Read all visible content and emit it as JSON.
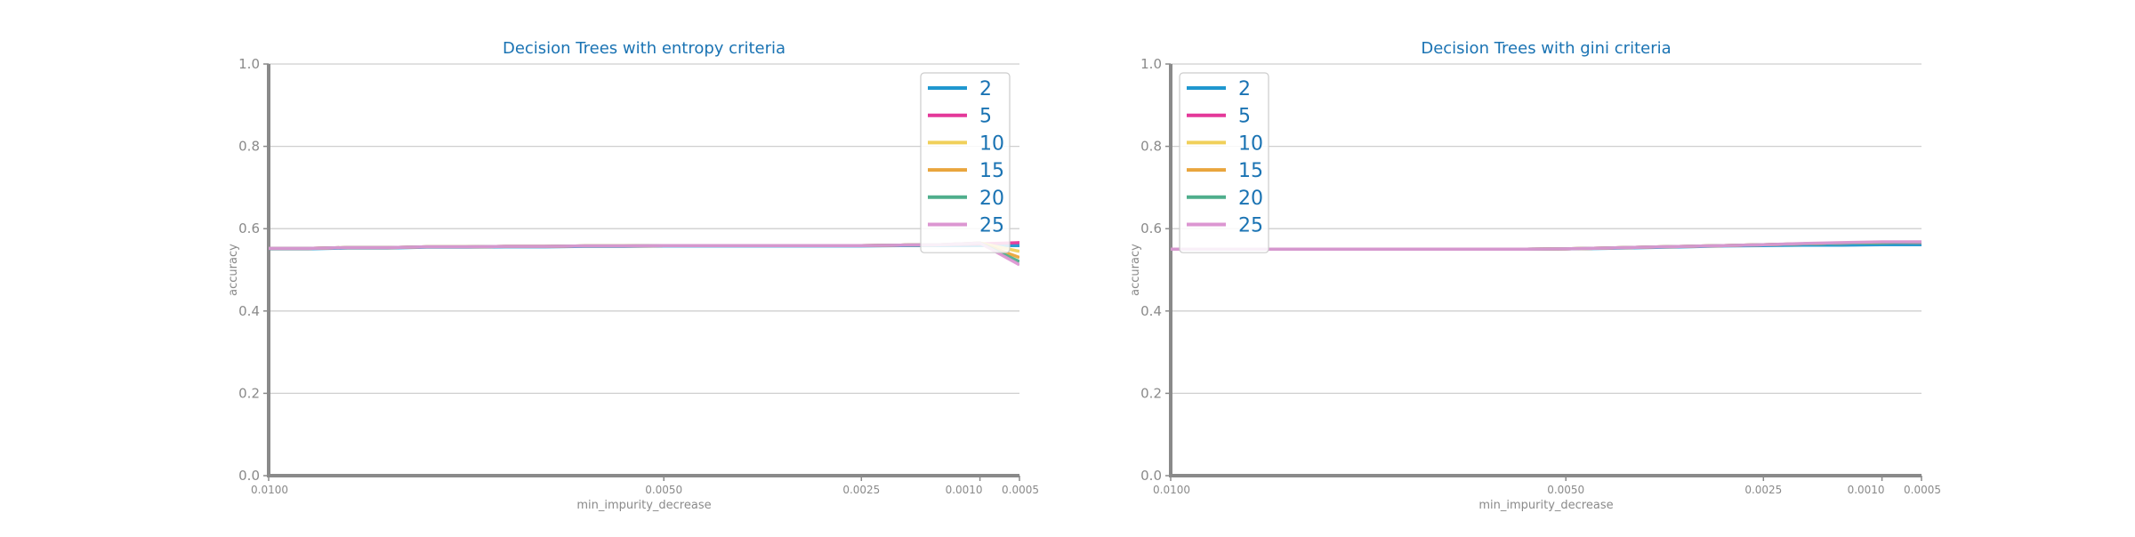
{
  "chart_data": [
    {
      "type": "line",
      "title": "Decision Trees with entropy criteria",
      "xlabel": "min_impurity_decrease",
      "ylabel": "accuracy",
      "ylim": [
        0,
        1
      ],
      "xlim": [
        0.01,
        0.0005
      ],
      "x_reversed": true,
      "grid": "horizontal",
      "legend_position": "top-right",
      "xticks": [
        0.01,
        0.005,
        0.0025,
        0.001,
        0.0005
      ],
      "xtick_labels": [
        "0.0100",
        "0.0050",
        "0.0025",
        "0.0010",
        "0.0005"
      ],
      "yticks": [
        0,
        0.2,
        0.4,
        0.6,
        0.8,
        1
      ],
      "ytick_labels": [
        "0.0",
        "0.2",
        "0.4",
        "0.6",
        "0.8",
        "1.0"
      ],
      "x": [
        0.01,
        0.0095,
        0.009,
        0.0085,
        0.008,
        0.0075,
        0.007,
        0.0065,
        0.006,
        0.0055,
        0.005,
        0.0045,
        0.004,
        0.0035,
        0.003,
        0.0025,
        0.002,
        0.0015,
        0.001,
        0.0005
      ],
      "series": [
        {
          "name": "2",
          "color": "#1f97cf",
          "values": [
            0.551,
            0.551,
            0.553,
            0.553,
            0.555,
            0.555,
            0.556,
            0.556,
            0.557,
            0.557,
            0.558,
            0.558,
            0.558,
            0.558,
            0.558,
            0.558,
            0.559,
            0.559,
            0.559,
            0.559
          ]
        },
        {
          "name": "5",
          "color": "#e4389a",
          "values": [
            0.552,
            0.552,
            0.554,
            0.554,
            0.556,
            0.556,
            0.557,
            0.557,
            0.558,
            0.558,
            0.559,
            0.559,
            0.559,
            0.559,
            0.559,
            0.559,
            0.56,
            0.561,
            0.563,
            0.566
          ]
        },
        {
          "name": "10",
          "color": "#f0d05a",
          "values": [
            0.552,
            0.552,
            0.554,
            0.554,
            0.556,
            0.556,
            0.557,
            0.557,
            0.558,
            0.558,
            0.559,
            0.559,
            0.559,
            0.559,
            0.559,
            0.559,
            0.56,
            0.561,
            0.565,
            0.545
          ]
        },
        {
          "name": "15",
          "color": "#e9a53d",
          "values": [
            0.552,
            0.552,
            0.554,
            0.554,
            0.556,
            0.556,
            0.557,
            0.557,
            0.558,
            0.558,
            0.559,
            0.559,
            0.559,
            0.559,
            0.559,
            0.559,
            0.56,
            0.561,
            0.565,
            0.53
          ]
        },
        {
          "name": "20",
          "color": "#4fae8c",
          "values": [
            0.552,
            0.552,
            0.554,
            0.554,
            0.556,
            0.556,
            0.557,
            0.557,
            0.558,
            0.558,
            0.559,
            0.559,
            0.559,
            0.559,
            0.559,
            0.559,
            0.56,
            0.561,
            0.565,
            0.52
          ]
        },
        {
          "name": "25",
          "color": "#dc96d2",
          "values": [
            0.552,
            0.552,
            0.554,
            0.554,
            0.556,
            0.556,
            0.557,
            0.557,
            0.558,
            0.558,
            0.559,
            0.559,
            0.559,
            0.559,
            0.559,
            0.559,
            0.56,
            0.561,
            0.565,
            0.512
          ]
        }
      ]
    },
    {
      "type": "line",
      "title": "Decision Trees with gini criteria",
      "xlabel": "min_impurity_decrease",
      "ylabel": "accuracy",
      "ylim": [
        0,
        1
      ],
      "xlim": [
        0.01,
        0.0005
      ],
      "x_reversed": true,
      "grid": "horizontal",
      "legend_position": "top-left",
      "xticks": [
        0.01,
        0.005,
        0.0025,
        0.001,
        0.0005
      ],
      "xtick_labels": [
        "0.0100",
        "0.0050",
        "0.0025",
        "0.0010",
        "0.0005"
      ],
      "yticks": [
        0,
        0.2,
        0.4,
        0.6,
        0.8,
        1
      ],
      "ytick_labels": [
        "0.0",
        "0.2",
        "0.4",
        "0.6",
        "0.8",
        "1.0"
      ],
      "x": [
        0.01,
        0.0095,
        0.009,
        0.0085,
        0.008,
        0.0075,
        0.007,
        0.0065,
        0.006,
        0.0055,
        0.005,
        0.0045,
        0.004,
        0.0035,
        0.003,
        0.0025,
        0.002,
        0.0015,
        0.001,
        0.0005
      ],
      "series": [
        {
          "name": "2",
          "color": "#1f97cf",
          "values": [
            0.55,
            0.55,
            0.55,
            0.55,
            0.55,
            0.55,
            0.55,
            0.55,
            0.55,
            0.55,
            0.551,
            0.552,
            0.554,
            0.556,
            0.558,
            0.559,
            0.56,
            0.56,
            0.561,
            0.561
          ]
        },
        {
          "name": "5",
          "color": "#e4389a",
          "values": [
            0.55,
            0.55,
            0.55,
            0.55,
            0.55,
            0.55,
            0.55,
            0.55,
            0.55,
            0.55,
            0.551,
            0.553,
            0.555,
            0.557,
            0.559,
            0.561,
            0.563,
            0.565,
            0.566,
            0.566
          ]
        },
        {
          "name": "10",
          "color": "#f0d05a",
          "values": [
            0.55,
            0.55,
            0.55,
            0.55,
            0.55,
            0.55,
            0.55,
            0.55,
            0.55,
            0.55,
            0.551,
            0.553,
            0.555,
            0.557,
            0.559,
            0.561,
            0.563,
            0.565,
            0.566,
            0.567
          ]
        },
        {
          "name": "15",
          "color": "#e9a53d",
          "values": [
            0.55,
            0.55,
            0.55,
            0.55,
            0.55,
            0.55,
            0.55,
            0.55,
            0.55,
            0.55,
            0.551,
            0.553,
            0.555,
            0.557,
            0.559,
            0.561,
            0.563,
            0.565,
            0.566,
            0.567
          ]
        },
        {
          "name": "20",
          "color": "#4fae8c",
          "values": [
            0.55,
            0.55,
            0.55,
            0.55,
            0.55,
            0.55,
            0.55,
            0.55,
            0.55,
            0.55,
            0.551,
            0.553,
            0.555,
            0.557,
            0.559,
            0.561,
            0.563,
            0.565,
            0.566,
            0.567
          ]
        },
        {
          "name": "25",
          "color": "#dc96d2",
          "values": [
            0.55,
            0.55,
            0.55,
            0.55,
            0.55,
            0.55,
            0.55,
            0.55,
            0.55,
            0.55,
            0.551,
            0.553,
            0.555,
            0.557,
            0.559,
            0.561,
            0.564,
            0.566,
            0.568,
            0.568
          ]
        }
      ]
    }
  ],
  "colors": {
    "title": "#1a73b3",
    "axis": "#8a8a8a",
    "tick_label": "#8a8a8a",
    "grid": "#cfcfcf",
    "legend_text": "#1a73b3",
    "legend_border": "#cccccc"
  }
}
